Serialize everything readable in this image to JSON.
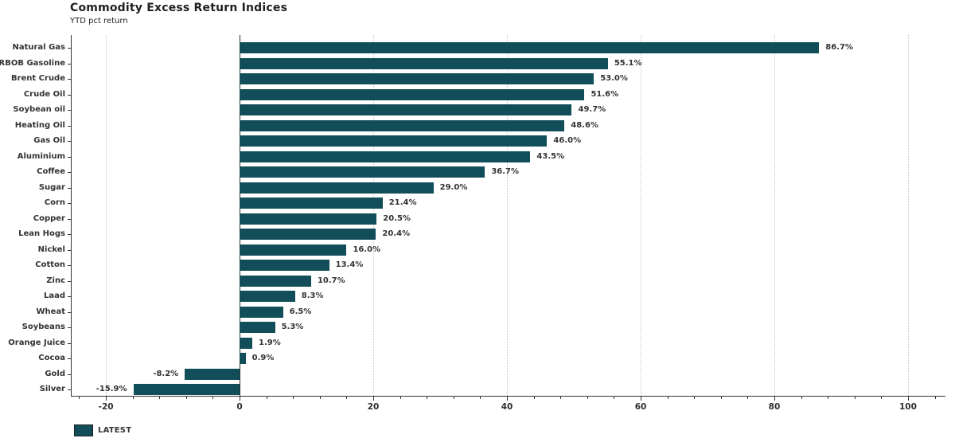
{
  "title": "Commodity Excess Return Indices",
  "subtitle": "YTD pct return",
  "legend": {
    "label": "LATEST"
  },
  "colors": {
    "bar": "#124e5a",
    "grid": "#c4c4c4",
    "axis": "#333333",
    "zero_line": "#2b2b2b",
    "text": "#333333"
  },
  "chart_data": {
    "type": "bar",
    "orientation": "horizontal",
    "title": "Commodity Excess Return Indices",
    "subtitle": "YTD pct return",
    "categories": [
      "Natural Gas",
      "RBOB Gasoline",
      "Brent Crude",
      "Crude Oil",
      "Soybean oil",
      "Heating Oil",
      "Gas Oil",
      "Aluminium",
      "Coffee",
      "Sugar",
      "Corn",
      "Copper",
      "Lean Hogs",
      "Nickel",
      "Cotton",
      "Zinc",
      "Laad",
      "Wheat",
      "Soybeans",
      "Orange Juice",
      "Cocoa",
      "Gold",
      "Silver"
    ],
    "values": [
      86.7,
      55.1,
      53.0,
      51.6,
      49.7,
      48.6,
      46.0,
      43.5,
      36.7,
      29.0,
      21.4,
      20.5,
      20.4,
      16.0,
      13.4,
      10.7,
      8.3,
      6.5,
      5.3,
      1.9,
      0.9,
      -8.2,
      -15.9
    ],
    "value_labels": [
      "86.7%",
      "55.1%",
      "53.0%",
      "51.6%",
      "49.7%",
      "48.6%",
      "46.0%",
      "43.5%",
      "36.7%",
      "29.0%",
      "21.4%",
      "20.5%",
      "20.4%",
      "16.0%",
      "13.4%",
      "10.7%",
      "8.3%",
      "6.5%",
      "5.3%",
      "1.9%",
      "0.9%",
      "-8.2%",
      "-15.9%"
    ],
    "xlim": [
      -25.25,
      105.6
    ],
    "xticks": [
      -20,
      0,
      20,
      40,
      60,
      80,
      100
    ],
    "xtick_labels": [
      "-20",
      "0",
      "20",
      "40",
      "60",
      "80",
      "100"
    ],
    "minor_tick_step": 4,
    "grid": "vertical dotted at major ticks",
    "zero_line": true,
    "legend_entries": [
      "LATEST"
    ],
    "legend_position": "bottom-left",
    "bar_color": "#124e5a"
  }
}
